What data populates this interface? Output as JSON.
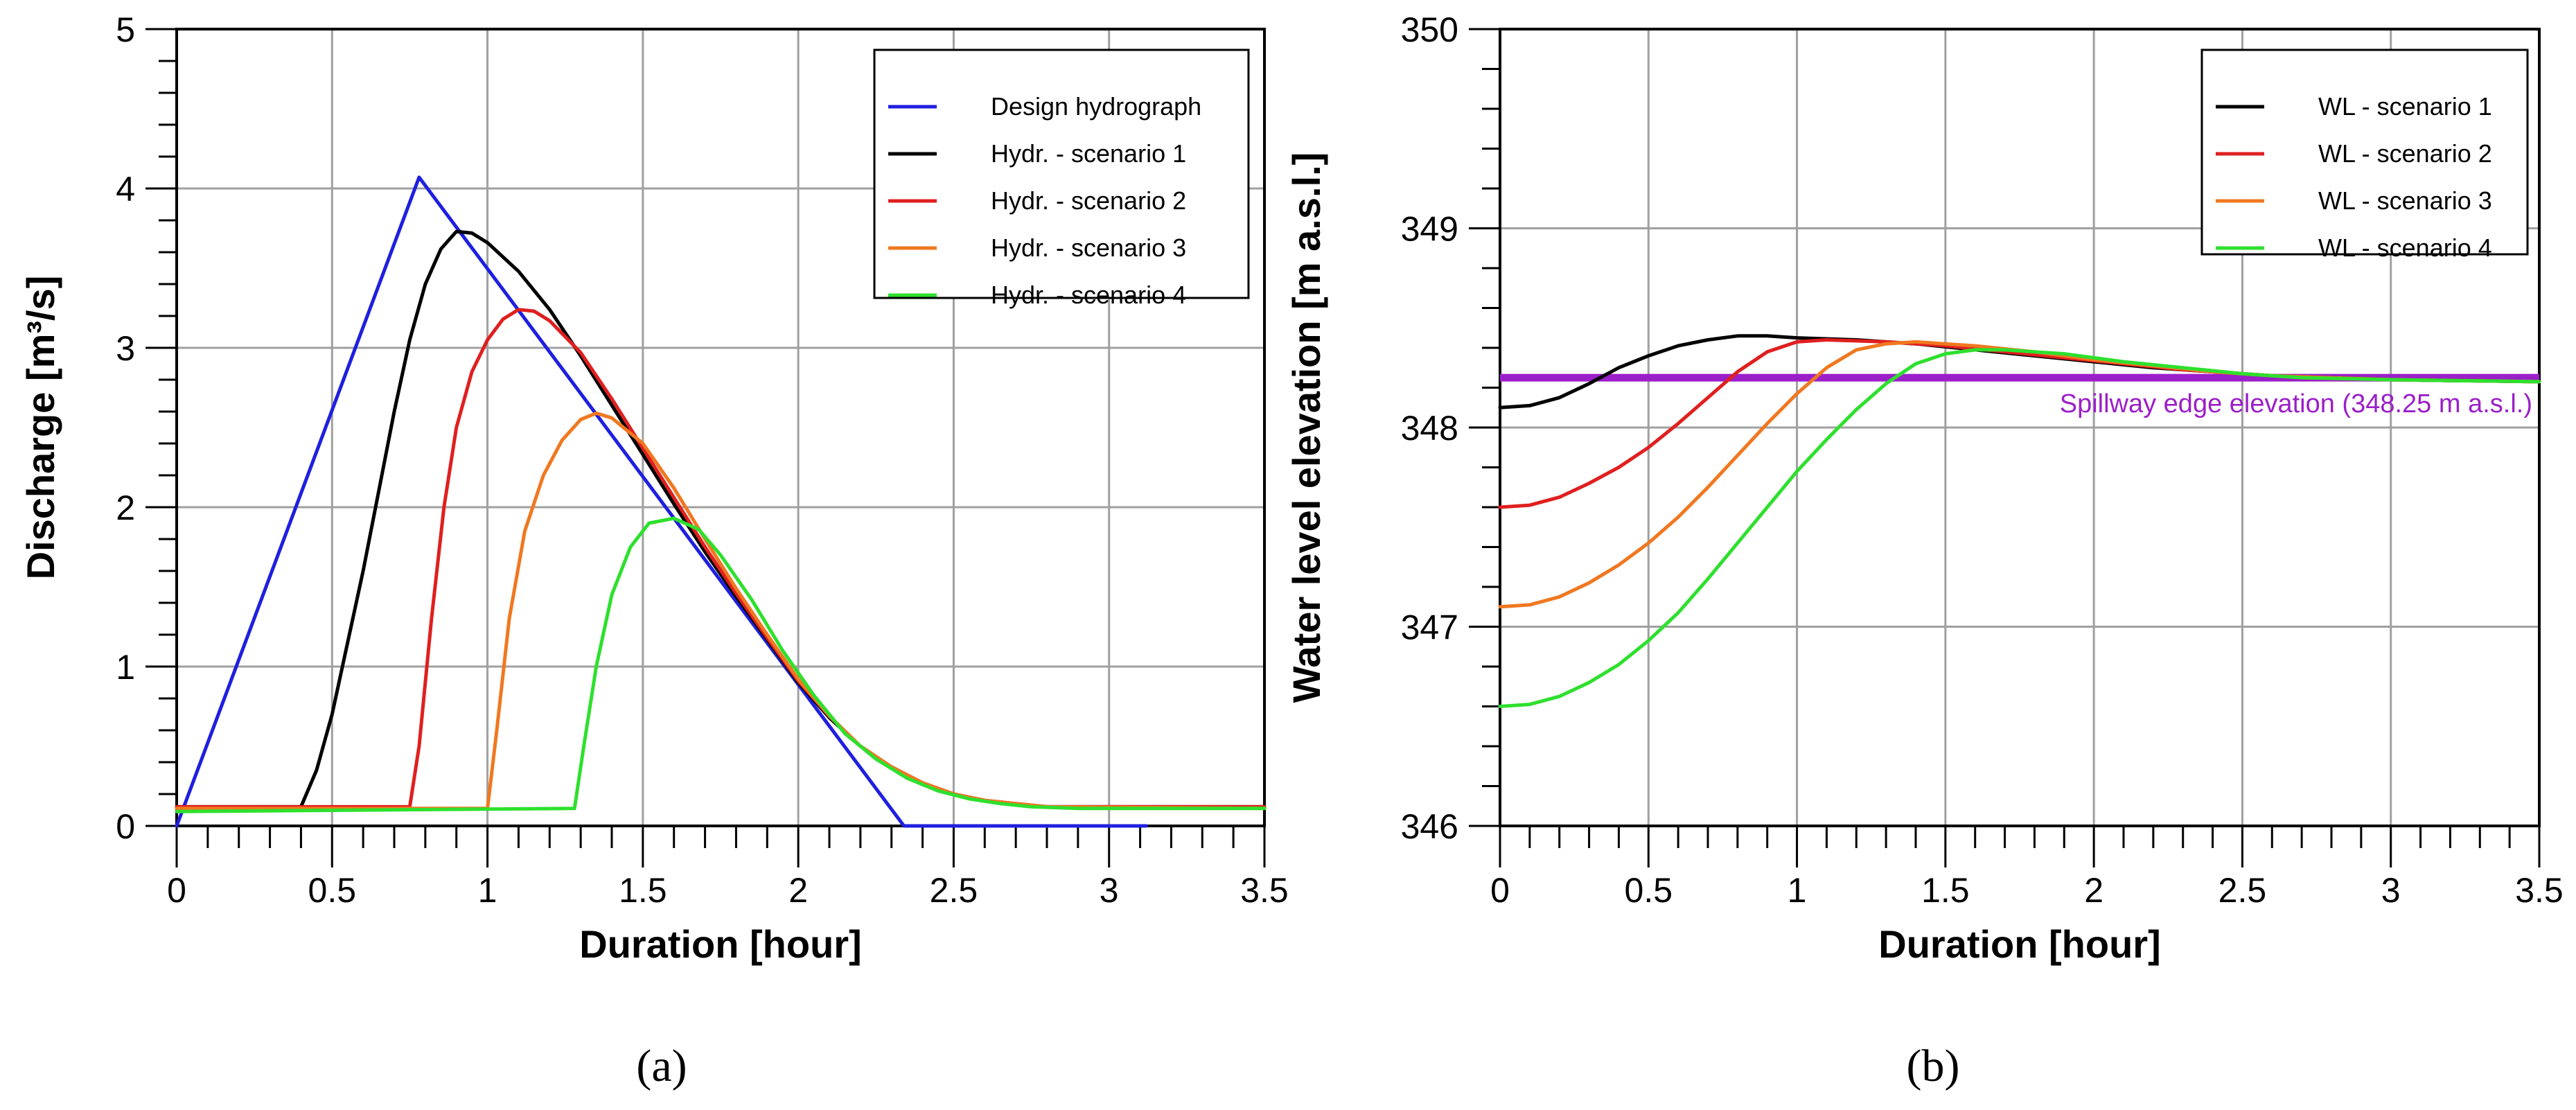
{
  "chart_data": [
    {
      "type": "line",
      "panel": "a",
      "caption": "(a)",
      "xlabel": "Duration [hour]",
      "ylabel": "Discharge [m³/s]",
      "xlim": [
        0,
        3.5
      ],
      "ylim": [
        0,
        5
      ],
      "xticks": [
        "0",
        "0.5",
        "1",
        "1.5",
        "2",
        "2.5",
        "3",
        "3.5"
      ],
      "yticks": [
        "0",
        "1",
        "2",
        "3",
        "4",
        "5"
      ],
      "grid": true,
      "legend_position": "top-right",
      "series": [
        {
          "name": "Design hydrograph",
          "color": "#1f1fe0",
          "points": [
            [
              0,
              0
            ],
            [
              0.78,
              4.07
            ],
            [
              2.34,
              0
            ],
            [
              3.12,
              0
            ]
          ]
        },
        {
          "name": "Hydr. - scenario 1",
          "color": "#000000",
          "points": [
            [
              0,
              0.12
            ],
            [
              0.4,
              0.12
            ],
            [
              0.45,
              0.35
            ],
            [
              0.5,
              0.7
            ],
            [
              0.55,
              1.15
            ],
            [
              0.6,
              1.6
            ],
            [
              0.65,
              2.1
            ],
            [
              0.7,
              2.6
            ],
            [
              0.75,
              3.05
            ],
            [
              0.8,
              3.4
            ],
            [
              0.85,
              3.62
            ],
            [
              0.9,
              3.73
            ],
            [
              0.95,
              3.72
            ],
            [
              1.0,
              3.66
            ],
            [
              1.1,
              3.48
            ],
            [
              1.2,
              3.24
            ],
            [
              1.3,
              2.95
            ],
            [
              1.4,
              2.64
            ],
            [
              1.5,
              2.33
            ],
            [
              1.6,
              2.02
            ],
            [
              1.7,
              1.72
            ],
            [
              1.8,
              1.44
            ],
            [
              1.9,
              1.17
            ],
            [
              2.0,
              0.9
            ],
            [
              2.1,
              0.68
            ],
            [
              2.2,
              0.5
            ],
            [
              2.3,
              0.37
            ],
            [
              2.4,
              0.27
            ],
            [
              2.5,
              0.2
            ],
            [
              2.6,
              0.16
            ],
            [
              2.7,
              0.14
            ],
            [
              2.8,
              0.12
            ],
            [
              2.9,
              0.12
            ],
            [
              3.5,
              0.12
            ]
          ]
        },
        {
          "name": "Hydr. - scenario 2",
          "color": "#e01f1f",
          "points": [
            [
              0,
              0.12
            ],
            [
              0.75,
              0.12
            ],
            [
              0.78,
              0.5
            ],
            [
              0.82,
              1.3
            ],
            [
              0.86,
              2.0
            ],
            [
              0.9,
              2.5
            ],
            [
              0.95,
              2.85
            ],
            [
              1.0,
              3.05
            ],
            [
              1.05,
              3.18
            ],
            [
              1.1,
              3.24
            ],
            [
              1.15,
              3.23
            ],
            [
              1.2,
              3.17
            ],
            [
              1.3,
              2.97
            ],
            [
              1.4,
              2.68
            ],
            [
              1.5,
              2.37
            ],
            [
              1.6,
              2.06
            ],
            [
              1.7,
              1.75
            ],
            [
              1.8,
              1.46
            ],
            [
              1.9,
              1.18
            ],
            [
              2.0,
              0.91
            ],
            [
              2.1,
              0.69
            ],
            [
              2.2,
              0.5
            ],
            [
              2.3,
              0.37
            ],
            [
              2.4,
              0.27
            ],
            [
              2.5,
              0.2
            ],
            [
              2.6,
              0.16
            ],
            [
              2.7,
              0.14
            ],
            [
              2.8,
              0.12
            ],
            [
              3.5,
              0.12
            ]
          ]
        },
        {
          "name": "Hydr. - scenario 3",
          "color": "#f07820",
          "points": [
            [
              0,
              0.11
            ],
            [
              1.0,
              0.11
            ],
            [
              1.03,
              0.6
            ],
            [
              1.07,
              1.3
            ],
            [
              1.12,
              1.85
            ],
            [
              1.18,
              2.2
            ],
            [
              1.24,
              2.42
            ],
            [
              1.3,
              2.55
            ],
            [
              1.35,
              2.59
            ],
            [
              1.4,
              2.56
            ],
            [
              1.5,
              2.4
            ],
            [
              1.6,
              2.12
            ],
            [
              1.7,
              1.8
            ],
            [
              1.8,
              1.49
            ],
            [
              1.9,
              1.2
            ],
            [
              2.0,
              0.92
            ],
            [
              2.1,
              0.69
            ],
            [
              2.2,
              0.5
            ],
            [
              2.3,
              0.37
            ],
            [
              2.4,
              0.27
            ],
            [
              2.5,
              0.2
            ],
            [
              2.6,
              0.16
            ],
            [
              2.7,
              0.14
            ],
            [
              2.8,
              0.12
            ],
            [
              3.5,
              0.11
            ]
          ]
        },
        {
          "name": "Hydr. - scenario 4",
          "color": "#2ee02e",
          "points": [
            [
              0,
              0.09
            ],
            [
              1.28,
              0.11
            ],
            [
              1.31,
              0.5
            ],
            [
              1.35,
              1.0
            ],
            [
              1.4,
              1.45
            ],
            [
              1.46,
              1.75
            ],
            [
              1.52,
              1.9
            ],
            [
              1.6,
              1.93
            ],
            [
              1.68,
              1.86
            ],
            [
              1.75,
              1.7
            ],
            [
              1.85,
              1.42
            ],
            [
              1.95,
              1.1
            ],
            [
              2.05,
              0.82
            ],
            [
              2.15,
              0.58
            ],
            [
              2.25,
              0.42
            ],
            [
              2.35,
              0.3
            ],
            [
              2.45,
              0.22
            ],
            [
              2.55,
              0.17
            ],
            [
              2.65,
              0.14
            ],
            [
              2.75,
              0.12
            ],
            [
              2.9,
              0.11
            ],
            [
              3.5,
              0.11
            ]
          ]
        }
      ]
    },
    {
      "type": "line",
      "panel": "b",
      "caption": "(b)",
      "xlabel": "Duration [hour]",
      "ylabel": "Water level elevation [m a.s.l.]",
      "xlim": [
        0,
        3.5
      ],
      "ylim": [
        346,
        350
      ],
      "xticks": [
        "0",
        "0.5",
        "1",
        "1.5",
        "2",
        "2.5",
        "3",
        "3.5"
      ],
      "yticks": [
        "346",
        "347",
        "348",
        "349",
        "350"
      ],
      "grid": true,
      "legend_position": "top-right",
      "reference_line": {
        "y": 348.25,
        "label": "Spillway edge elevation (348.25 m a.s.l.)",
        "color": "#9b1fc9"
      },
      "series": [
        {
          "name": "WL - scenario 1",
          "color": "#000000",
          "points": [
            [
              0,
              348.1
            ],
            [
              0.1,
              348.11
            ],
            [
              0.2,
              348.15
            ],
            [
              0.3,
              348.22
            ],
            [
              0.4,
              348.3
            ],
            [
              0.5,
              348.36
            ],
            [
              0.6,
              348.41
            ],
            [
              0.7,
              348.44
            ],
            [
              0.8,
              348.46
            ],
            [
              0.9,
              348.46
            ],
            [
              1.0,
              348.45
            ],
            [
              1.2,
              348.44
            ],
            [
              1.4,
              348.42
            ],
            [
              1.6,
              348.39
            ],
            [
              1.8,
              348.36
            ],
            [
              2.0,
              348.33
            ],
            [
              2.2,
              348.3
            ],
            [
              2.4,
              348.28
            ],
            [
              2.6,
              348.26
            ],
            [
              2.8,
              348.25
            ],
            [
              3.0,
              348.24
            ],
            [
              3.5,
              348.23
            ]
          ]
        },
        {
          "name": "WL - scenario 2",
          "color": "#e01f1f",
          "points": [
            [
              0,
              347.6
            ],
            [
              0.1,
              347.61
            ],
            [
              0.2,
              347.65
            ],
            [
              0.3,
              347.72
            ],
            [
              0.4,
              347.8
            ],
            [
              0.5,
              347.9
            ],
            [
              0.6,
              348.02
            ],
            [
              0.7,
              348.15
            ],
            [
              0.8,
              348.28
            ],
            [
              0.9,
              348.38
            ],
            [
              1.0,
              348.43
            ],
            [
              1.1,
              348.44
            ],
            [
              1.3,
              348.43
            ],
            [
              1.5,
              348.41
            ],
            [
              1.7,
              348.38
            ],
            [
              1.9,
              348.35
            ],
            [
              2.1,
              348.32
            ],
            [
              2.3,
              348.29
            ],
            [
              2.5,
              348.27
            ],
            [
              2.7,
              348.25
            ],
            [
              3.0,
              348.24
            ],
            [
              3.5,
              348.23
            ]
          ]
        },
        {
          "name": "WL - scenario 3",
          "color": "#f07820",
          "points": [
            [
              0,
              347.1
            ],
            [
              0.1,
              347.11
            ],
            [
              0.2,
              347.15
            ],
            [
              0.3,
              347.22
            ],
            [
              0.4,
              347.31
            ],
            [
              0.5,
              347.42
            ],
            [
              0.6,
              347.55
            ],
            [
              0.7,
              347.7
            ],
            [
              0.8,
              347.86
            ],
            [
              0.9,
              348.02
            ],
            [
              1.0,
              348.17
            ],
            [
              1.1,
              348.3
            ],
            [
              1.2,
              348.39
            ],
            [
              1.3,
              348.42
            ],
            [
              1.4,
              348.43
            ],
            [
              1.6,
              348.41
            ],
            [
              1.8,
              348.38
            ],
            [
              2.0,
              348.34
            ],
            [
              2.2,
              348.31
            ],
            [
              2.4,
              348.28
            ],
            [
              2.6,
              348.26
            ],
            [
              2.8,
              348.25
            ],
            [
              3.0,
              348.24
            ],
            [
              3.5,
              348.23
            ]
          ]
        },
        {
          "name": "WL - scenario 4",
          "color": "#2ee02e",
          "points": [
            [
              0,
              346.6
            ],
            [
              0.1,
              346.61
            ],
            [
              0.2,
              346.65
            ],
            [
              0.3,
              346.72
            ],
            [
              0.4,
              346.81
            ],
            [
              0.5,
              346.93
            ],
            [
              0.6,
              347.07
            ],
            [
              0.7,
              347.24
            ],
            [
              0.8,
              347.42
            ],
            [
              0.9,
              347.6
            ],
            [
              1.0,
              347.78
            ],
            [
              1.1,
              347.94
            ],
            [
              1.2,
              348.09
            ],
            [
              1.3,
              348.22
            ],
            [
              1.4,
              348.32
            ],
            [
              1.5,
              348.37
            ],
            [
              1.6,
              348.39
            ],
            [
              1.7,
              348.39
            ],
            [
              1.9,
              348.37
            ],
            [
              2.1,
              348.33
            ],
            [
              2.3,
              348.3
            ],
            [
              2.5,
              348.27
            ],
            [
              2.7,
              348.25
            ],
            [
              3.0,
              348.24
            ],
            [
              3.5,
              348.23
            ]
          ]
        }
      ]
    }
  ]
}
